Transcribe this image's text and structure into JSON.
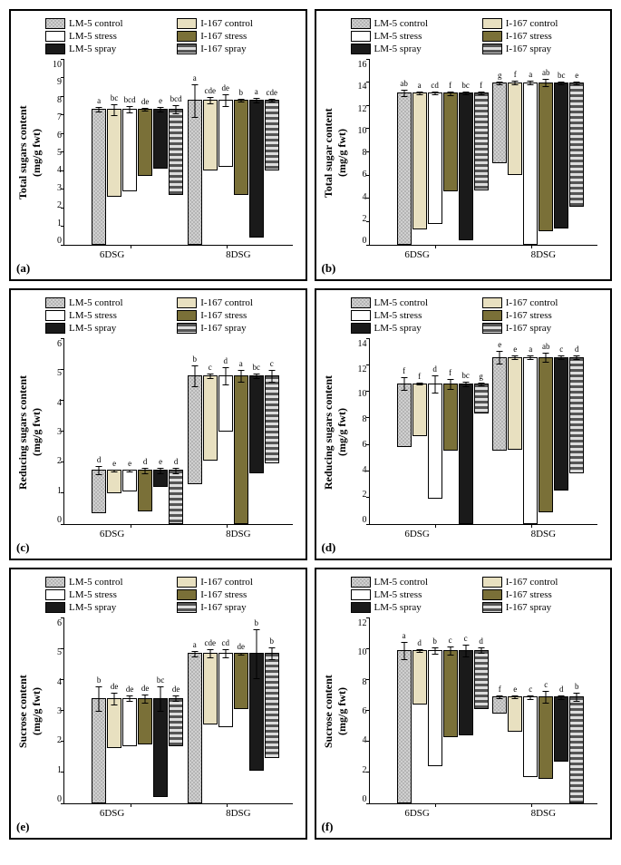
{
  "legend_items": [
    {
      "label": "LM-5 control",
      "cls": "f-speckle"
    },
    {
      "label": "I-167 control",
      "cls": "f-cream"
    },
    {
      "label": "LM-5 stress",
      "cls": "f-white"
    },
    {
      "label": "I-167 stress",
      "cls": "f-olive"
    },
    {
      "label": "LM-5 spray",
      "cls": "f-black"
    },
    {
      "label": "I-167 spray",
      "cls": "f-stripe"
    }
  ],
  "series_order": [
    "f-speckle",
    "f-cream",
    "f-white",
    "f-olive",
    "f-black",
    "f-stripe"
  ],
  "xgroups": [
    "6DSG",
    "8DSG"
  ],
  "panels": [
    {
      "letter": "(a)",
      "ylabel": "Total sugars content\n(mg/g fwt)",
      "ymax": 10,
      "ystep": 1,
      "data": {
        "6DSG": {
          "vals": [
            7.3,
            4.7,
            4.4,
            3.6,
            3.2,
            4.6
          ],
          "err": [
            0.15,
            0.3,
            0.2,
            0.1,
            0.15,
            0.25
          ],
          "sig": [
            "a",
            "bc",
            "bcd",
            "de",
            "e",
            "bcd"
          ]
        },
        "8DSG": {
          "vals": [
            7.8,
            3.8,
            3.6,
            5.1,
            7.4,
            3.8
          ],
          "err": [
            0.9,
            0.2,
            0.35,
            0.1,
            0.15,
            0.1
          ],
          "sig": [
            "a",
            "cde",
            "de",
            "b",
            "a",
            "cde"
          ]
        }
      }
    },
    {
      "letter": "(b)",
      "ylabel": "Total sugar content\n(mg/g fwt)",
      "ymax": 16,
      "ystep": 2,
      "data": {
        "6DSG": {
          "vals": [
            13.1,
            11.8,
            11.3,
            8.5,
            12.7,
            8.4
          ],
          "err": [
            0.3,
            0.15,
            0.15,
            0.2,
            0.15,
            0.15
          ],
          "sig": [
            "ab",
            "a",
            "cd",
            "f",
            "bc",
            "f"
          ]
        },
        "8DSG": {
          "vals": [
            7.0,
            8.0,
            14.0,
            12.8,
            12.6,
            10.7
          ],
          "err": [
            0.15,
            0.2,
            0.2,
            0.35,
            0.15,
            0.15
          ],
          "sig": [
            "g",
            "f",
            "a",
            "ab",
            "bc",
            "e"
          ]
        }
      }
    },
    {
      "letter": "(c)",
      "ylabel": "Reducing sugars content\n(mg/g fwt)",
      "ymax": 6,
      "ystep": 1,
      "data": {
        "6DSG": {
          "vals": [
            1.4,
            0.75,
            0.7,
            1.35,
            0.55,
            1.75
          ],
          "err": [
            0.15,
            0.05,
            0.05,
            0.1,
            0.1,
            0.1
          ],
          "sig": [
            "d",
            "e",
            "e",
            "d",
            "e",
            "d"
          ]
        },
        "8DSG": {
          "vals": [
            3.5,
            2.75,
            1.8,
            4.8,
            3.15,
            2.85
          ],
          "err": [
            0.35,
            0.1,
            0.3,
            0.2,
            0.1,
            0.2
          ],
          "sig": [
            "b",
            "c",
            "d",
            "a",
            "bc",
            "c"
          ]
        }
      }
    },
    {
      "letter": "(d)",
      "ylabel": "Reducing sugars content\n(mg/g fwt)",
      "ymax": 14,
      "ystep": 2,
      "data": {
        "6DSG": {
          "vals": [
            4.8,
            4.0,
            8.7,
            5.1,
            10.6,
            2.3
          ],
          "err": [
            0.5,
            0.1,
            0.7,
            0.4,
            0.2,
            0.15
          ],
          "sig": [
            "f",
            "f",
            "d",
            "f",
            "bc",
            "g"
          ]
        },
        "8DSG": {
          "vals": [
            7.1,
            7.0,
            12.6,
            11.7,
            10.1,
            8.8
          ],
          "err": [
            0.5,
            0.2,
            0.2,
            0.4,
            0.15,
            0.2
          ],
          "sig": [
            "e",
            "e",
            "a",
            "ab",
            "c",
            "d"
          ]
        }
      }
    },
    {
      "letter": "(e)",
      "ylabel": "Sucrose content\n(mg/g fwt)",
      "ymax": 6,
      "ystep": 1,
      "data": {
        "6DSG": {
          "vals": [
            3.4,
            1.6,
            1.55,
            1.5,
            3.2,
            1.55
          ],
          "err": [
            0.4,
            0.2,
            0.1,
            0.15,
            0.4,
            0.1
          ],
          "sig": [
            "b",
            "de",
            "de",
            "de",
            "bc",
            "de"
          ]
        },
        "8DSG": {
          "vals": [
            4.85,
            2.3,
            2.4,
            1.8,
            3.8,
            3.4
          ],
          "err": [
            0.1,
            0.15,
            0.15,
            0.05,
            0.8,
            0.2
          ],
          "sig": [
            "a",
            "cde",
            "cd",
            "de",
            "b",
            "b"
          ]
        }
      }
    },
    {
      "letter": "(f)",
      "ylabel": "Sucrose content\n(mg/g fwt)",
      "ymax": 12,
      "ystep": 2,
      "data": {
        "6DSG": {
          "vals": [
            9.9,
            3.5,
            7.5,
            5.6,
            5.5,
            3.8
          ],
          "err": [
            0.6,
            0.1,
            0.25,
            0.3,
            0.4,
            0.2
          ],
          "sig": [
            "a",
            "d",
            "b",
            "c",
            "c",
            "d"
          ]
        },
        "8DSG": {
          "vals": [
            1.1,
            2.3,
            5.2,
            5.3,
            4.2,
            6.9
          ],
          "err": [
            0.1,
            0.1,
            0.15,
            0.4,
            0.15,
            0.3
          ],
          "sig": [
            "f",
            "e",
            "c",
            "c",
            "d",
            "b"
          ]
        }
      }
    }
  ]
}
